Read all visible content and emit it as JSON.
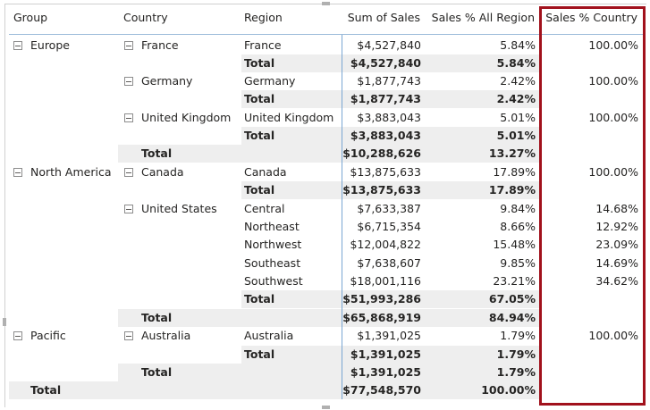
{
  "headers": {
    "group": "Group",
    "country": "Country",
    "region": "Region",
    "sum_sales": "Sum of Sales",
    "pct_all_region": "Sales % All Region",
    "pct_country": "Sales % Country"
  },
  "rows": [
    {
      "group": "Europe",
      "country": "France",
      "region": "France",
      "sales": "$4,527,840",
      "pct_all": "5.84%",
      "pct_country": "100.00%"
    },
    {
      "region": "Total",
      "sales": "$4,527,840",
      "pct_all": "5.84%"
    },
    {
      "country": "Germany",
      "region": "Germany",
      "sales": "$1,877,743",
      "pct_all": "2.42%",
      "pct_country": "100.00%"
    },
    {
      "region": "Total",
      "sales": "$1,877,743",
      "pct_all": "2.42%"
    },
    {
      "country": "United Kingdom",
      "region": "United Kingdom",
      "sales": "$3,883,043",
      "pct_all": "5.01%",
      "pct_country": "100.00%"
    },
    {
      "region": "Total",
      "sales": "$3,883,043",
      "pct_all": "5.01%"
    },
    {
      "country": "Total",
      "sales": "$10,288,626",
      "pct_all": "13.27%"
    },
    {
      "group": "North America",
      "country": "Canada",
      "region": "Canada",
      "sales": "$13,875,633",
      "pct_all": "17.89%",
      "pct_country": "100.00%"
    },
    {
      "region": "Total",
      "sales": "$13,875,633",
      "pct_all": "17.89%"
    },
    {
      "country": "United States",
      "region": "Central",
      "sales": "$7,633,387",
      "pct_all": "9.84%",
      "pct_country": "14.68%"
    },
    {
      "region": "Northeast",
      "sales": "$6,715,354",
      "pct_all": "8.66%",
      "pct_country": "12.92%"
    },
    {
      "region": "Northwest",
      "sales": "$12,004,822",
      "pct_all": "15.48%",
      "pct_country": "23.09%"
    },
    {
      "region": "Southeast",
      "sales": "$7,638,607",
      "pct_all": "9.85%",
      "pct_country": "14.69%"
    },
    {
      "region": "Southwest",
      "sales": "$18,001,116",
      "pct_all": "23.21%",
      "pct_country": "34.62%"
    },
    {
      "region": "Total",
      "sales": "$51,993,286",
      "pct_all": "67.05%"
    },
    {
      "country": "Total",
      "sales": "$65,868,919",
      "pct_all": "84.94%"
    },
    {
      "group": "Pacific",
      "country": "Australia",
      "region": "Australia",
      "sales": "$1,391,025",
      "pct_all": "1.79%",
      "pct_country": "100.00%"
    },
    {
      "region": "Total",
      "sales": "$1,391,025",
      "pct_all": "1.79%"
    },
    {
      "country": "Total",
      "sales": "$1,391,025",
      "pct_all": "1.79%"
    },
    {
      "group": "Total",
      "sales": "$77,548,570",
      "pct_all": "100.00%"
    }
  ],
  "colors": {
    "highlight_border": "#a1111c",
    "subtotal_band": "#eeeeee",
    "header_rule": "#9bbbd9"
  }
}
